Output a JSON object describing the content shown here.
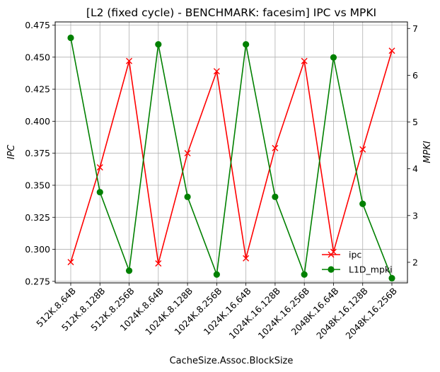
{
  "chart_data": {
    "type": "line",
    "title": "[L2 (fixed cycle) - BENCHMARK: facesim]  IPC vs MPKI",
    "xlabel": "CacheSize.Assoc.BlockSize",
    "ylabel_left": "IPC",
    "ylabel_right": "MPKI",
    "categories": [
      "512K.8.64B",
      "512K.8.128B",
      "512K.8.256B",
      "1024K.8.64B",
      "1024K.8.128B",
      "1024K.8.256B",
      "1024K.16.64B",
      "1024K.16.128B",
      "1024K.16.256B",
      "2048K.16.64B",
      "2048K.16.128B",
      "2048K.16.256B"
    ],
    "ylim_left": [
      0.2738,
      0.4775
    ],
    "ylim_right": [
      1.56,
      7.14
    ],
    "yticks_left": [
      "0.275",
      "0.300",
      "0.325",
      "0.350",
      "0.375",
      "0.400",
      "0.425",
      "0.450",
      "0.475"
    ],
    "yticks_right": [
      "2",
      "3",
      "4",
      "5",
      "6",
      "7"
    ],
    "grid": true,
    "legend_position": "lower-right",
    "series": [
      {
        "name": "ipc",
        "axis": "left",
        "color": "#ff0000",
        "marker": "x",
        "values": [
          0.29,
          0.364,
          0.447,
          0.289,
          0.375,
          0.439,
          0.293,
          0.379,
          0.447,
          0.298,
          0.378,
          0.455
        ]
      },
      {
        "name": "L1D_mpki",
        "axis": "right",
        "color": "#008000",
        "marker": "o",
        "values": [
          6.8,
          3.5,
          1.82,
          6.66,
          3.4,
          1.74,
          6.66,
          3.4,
          1.74,
          6.38,
          3.25,
          1.66
        ]
      }
    ]
  }
}
